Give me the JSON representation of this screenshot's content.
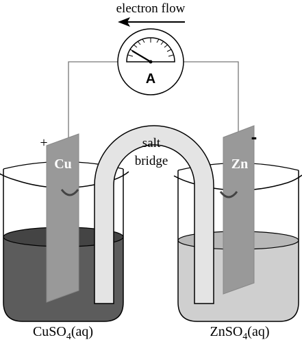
{
  "arrow_label": "electron flow",
  "meter": {
    "label": "A"
  },
  "bridge": {
    "line1": "salt",
    "line2": "bridge"
  },
  "left_cell": {
    "electrode": "Cu",
    "sign": "+",
    "solution_base": "CuSO",
    "solution_sub": "4",
    "solution_suffix": "(aq)",
    "solution_color": "#5c5c5c"
  },
  "right_cell": {
    "electrode": "Zn",
    "sign": "-",
    "solution_base": "ZnSO",
    "solution_sub": "4",
    "solution_suffix": "(aq)",
    "solution_color": "#cfcfcf"
  }
}
